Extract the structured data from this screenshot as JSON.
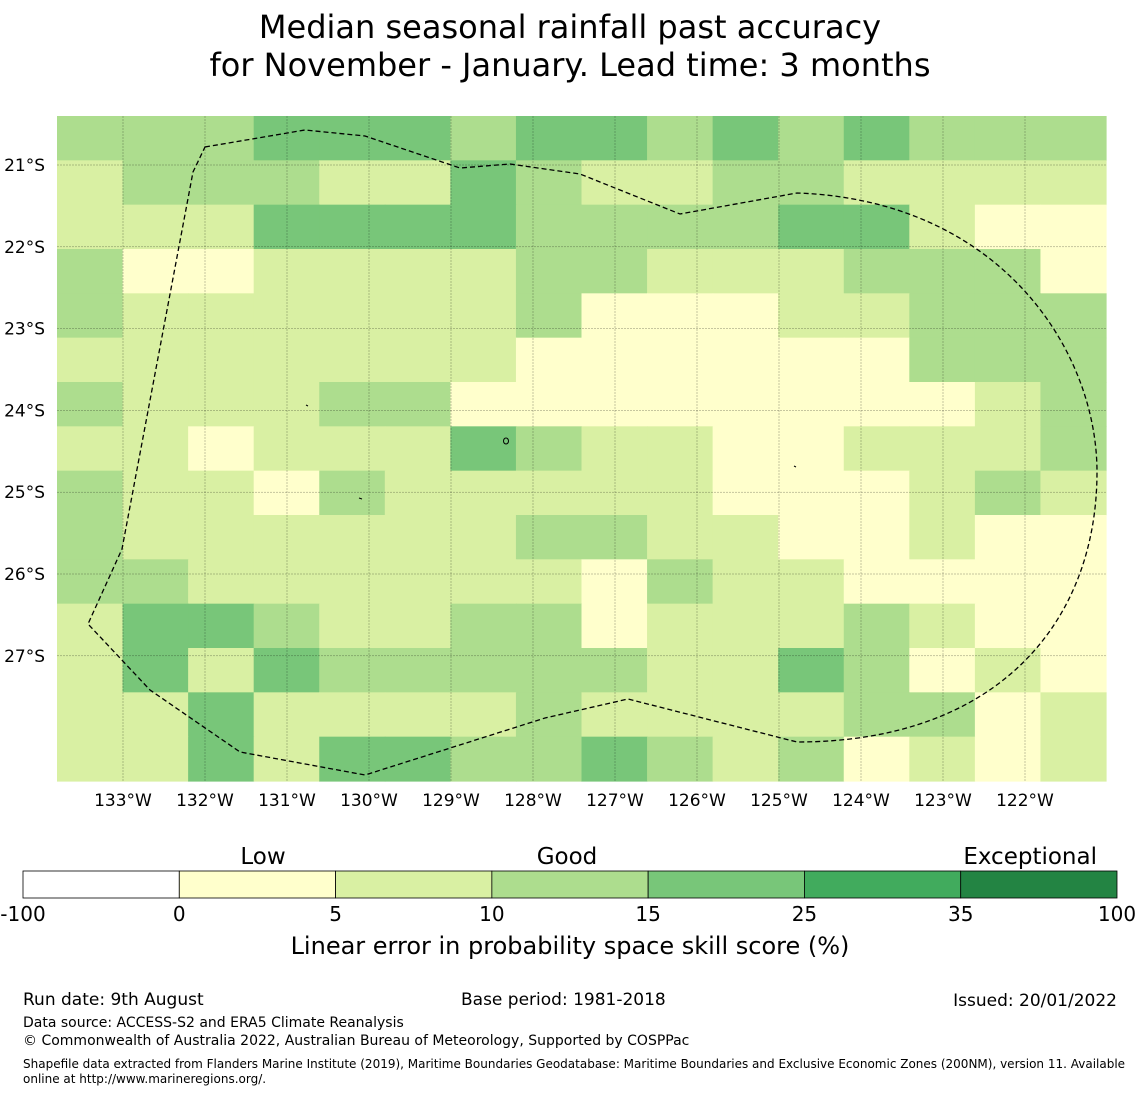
{
  "title": {
    "line1": "Median seasonal rainfall past accuracy",
    "line2": "for November - January. Lead time: 3 months"
  },
  "map": {
    "lat_labels": [
      "21°S",
      "22°S",
      "23°S",
      "24°S",
      "25°S",
      "26°S",
      "27°S"
    ],
    "lon_labels": [
      "133°W",
      "132°W",
      "131°W",
      "130°W",
      "129°W",
      "128°W",
      "127°W",
      "126°W",
      "125°W",
      "124°W",
      "123°W",
      "122°W"
    ],
    "grid": [
      "3334443443434333",
      "2333224322332222",
      "2224444333344211",
      "3112222332223331",
      "3222222311122333",
      "2222222111111333",
      "3222331111111123",
      "2212224322112223",
      "3221322222111232",
      "3222222332211211",
      "3322222213221111",
      "2443223312223211",
      "2424333332243121",
      "2242222322223312",
      "2242443343231212"
    ],
    "region_outline": "EEZ boundary (dashed)",
    "grid_color": "#000000",
    "outline_color": "#000000"
  },
  "legend": {
    "categories": [
      "Low",
      "Good",
      "Exceptional"
    ],
    "ticks": [
      "-100",
      "0",
      "5",
      "10",
      "15",
      "25",
      "35",
      "100"
    ],
    "colors": [
      "#ffffff",
      "#ffffcc",
      "#d9f0a3",
      "#addd8e",
      "#78c679",
      "#41ab5d",
      "#238443"
    ],
    "label": "Linear error in probability space skill score (%)"
  },
  "footer": {
    "run_date": "Run date: 9th August",
    "base_period": "Base period: 1981-2018",
    "issued": "Issued: 20/01/2022",
    "data_source": "Data source: ACCESS-S2 and ERA5 Climate Reanalysis",
    "copyright": "© Commonwealth of Australia 2022, Australian Bureau of Meteorology, Supported by COSPPac",
    "shapefile_line1": "Shapefile data extracted from Flanders Marine Institute (2019), Maritime Boundaries Geodatabase: Maritime Boundaries and Exclusive Economic Zones (200NM), version 11. Available",
    "shapefile_line2": "online at http://www.marineregions.org/."
  }
}
